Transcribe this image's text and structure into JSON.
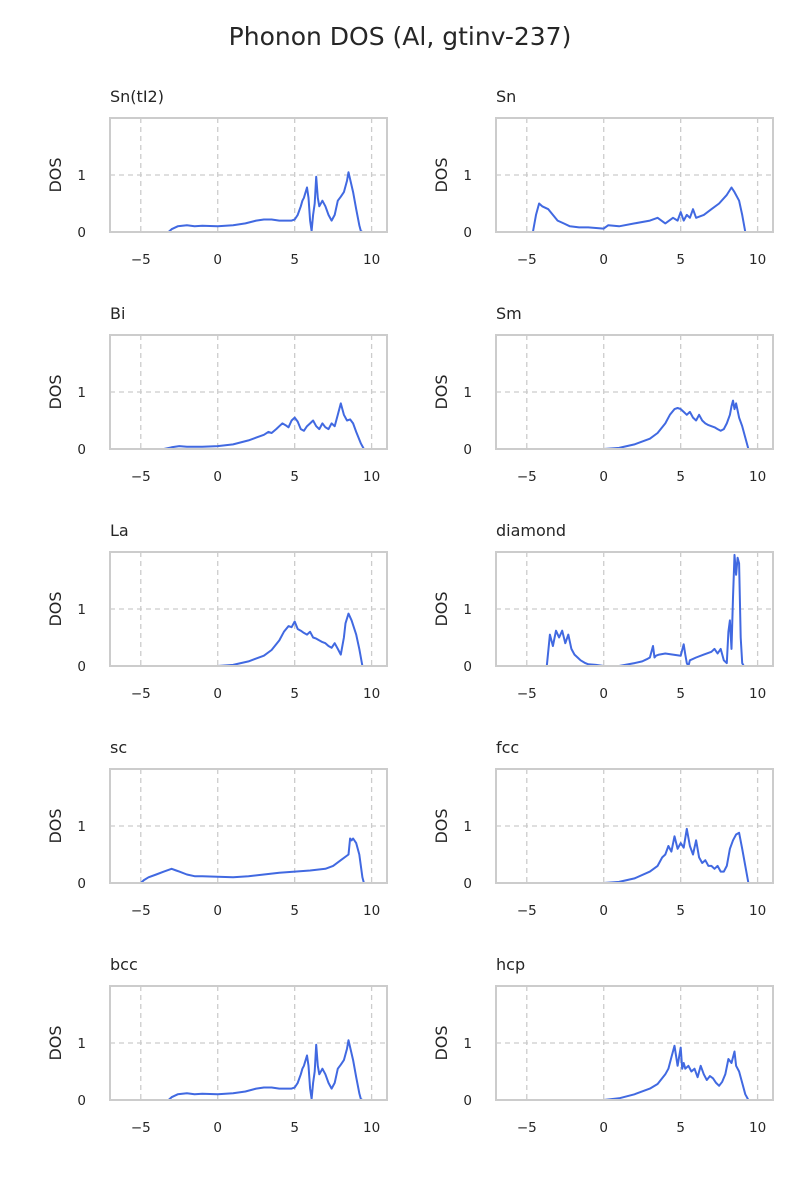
{
  "figure": {
    "title": "Phonon DOS (Al, gtinv-237)"
  },
  "style": {
    "line_color": "#4169e1"
  },
  "chart_data": [
    {
      "type": "line",
      "title": "Sn(tI2)",
      "xlabel": "",
      "ylabel": "DOS",
      "xlim": [
        -7,
        11
      ],
      "ylim": [
        0,
        2
      ],
      "xticks": [
        "−5",
        "0",
        "5",
        "10"
      ],
      "yticks": [
        "0",
        "1"
      ],
      "grid": true,
      "series": [
        {
          "x": [
            -4.5,
            -3.2,
            -3,
            -2.6,
            -2,
            -1.5,
            -1,
            0,
            1,
            1.8,
            2.5,
            3,
            3.5,
            4,
            4.5,
            4.8,
            5,
            5.2,
            5.4,
            5.5,
            5.6,
            5.8,
            5.9,
            6,
            6.1,
            6.2,
            6.3,
            6.4,
            6.5,
            6.6,
            6.8,
            7,
            7.2,
            7.4,
            7.6,
            7.8,
            8,
            8.2,
            8.4,
            8.5,
            8.8,
            9,
            9.2,
            9.3,
            9.4,
            10.5
          ],
          "y": [
            0,
            0,
            0.05,
            0.1,
            0.12,
            0.1,
            0.11,
            0.1,
            0.12,
            0.15,
            0.2,
            0.22,
            0.22,
            0.2,
            0.2,
            0.2,
            0.22,
            0.3,
            0.45,
            0.55,
            0.6,
            0.78,
            0.6,
            0.2,
            0.02,
            0.3,
            0.5,
            0.97,
            0.6,
            0.45,
            0.55,
            0.45,
            0.3,
            0.2,
            0.3,
            0.55,
            0.62,
            0.7,
            0.9,
            1.05,
            0.7,
            0.4,
            0.12,
            0.02,
            0,
            0
          ]
        }
      ]
    },
    {
      "type": "line",
      "title": "Sn",
      "xlabel": "",
      "ylabel": "DOS",
      "xlim": [
        -7,
        11
      ],
      "ylim": [
        0,
        2
      ],
      "xticks": [
        "−5",
        "0",
        "5",
        "10"
      ],
      "yticks": [
        "0",
        "1"
      ],
      "grid": true,
      "series": [
        {
          "x": [
            -5,
            -4.6,
            -4.4,
            -4.2,
            -4,
            -3.6,
            -3.3,
            -3,
            -2.6,
            -2.2,
            -1.6,
            -1,
            -0.5,
            0,
            0.3,
            1,
            2,
            3,
            3.5,
            4,
            4.5,
            4.8,
            5,
            5.2,
            5.4,
            5.6,
            5.8,
            6,
            6.5,
            7,
            7.5,
            8,
            8.3,
            8.5,
            8.8,
            9,
            9.2,
            10.5
          ],
          "y": [
            0,
            0,
            0.3,
            0.5,
            0.45,
            0.4,
            0.3,
            0.2,
            0.15,
            0.1,
            0.08,
            0.08,
            0.07,
            0.06,
            0.12,
            0.1,
            0.15,
            0.2,
            0.25,
            0.15,
            0.25,
            0.2,
            0.35,
            0.2,
            0.3,
            0.25,
            0.4,
            0.25,
            0.3,
            0.4,
            0.5,
            0.65,
            0.78,
            0.7,
            0.55,
            0.3,
            0,
            0
          ]
        }
      ]
    },
    {
      "type": "line",
      "title": "Bi",
      "xlabel": "",
      "ylabel": "DOS",
      "xlim": [
        -7,
        11
      ],
      "ylim": [
        0,
        2
      ],
      "xticks": [
        "−5",
        "0",
        "5",
        "10"
      ],
      "yticks": [
        "0",
        "1"
      ],
      "grid": true,
      "series": [
        {
          "x": [
            -4.5,
            -3.5,
            -3,
            -2.5,
            -2,
            -1,
            0,
            1,
            2,
            2.5,
            3,
            3.3,
            3.5,
            3.8,
            4,
            4.2,
            4.4,
            4.6,
            4.8,
            5,
            5.2,
            5.4,
            5.6,
            5.8,
            6,
            6.2,
            6.4,
            6.6,
            6.8,
            7,
            7.2,
            7.4,
            7.6,
            7.8,
            8,
            8.2,
            8.4,
            8.6,
            8.8,
            9,
            9.3,
            9.5,
            10.5
          ],
          "y": [
            0,
            0,
            0.03,
            0.05,
            0.04,
            0.04,
            0.05,
            0.08,
            0.15,
            0.2,
            0.25,
            0.3,
            0.28,
            0.35,
            0.4,
            0.45,
            0.42,
            0.38,
            0.5,
            0.55,
            0.48,
            0.35,
            0.32,
            0.4,
            0.45,
            0.5,
            0.4,
            0.35,
            0.45,
            0.38,
            0.35,
            0.45,
            0.4,
            0.6,
            0.8,
            0.6,
            0.5,
            0.52,
            0.45,
            0.3,
            0.1,
            0,
            0
          ]
        }
      ]
    },
    {
      "type": "line",
      "title": "Sm",
      "xlabel": "",
      "ylabel": "DOS",
      "xlim": [
        -7,
        11
      ],
      "ylim": [
        0,
        2
      ],
      "xticks": [
        "−5",
        "0",
        "5",
        "10"
      ],
      "yticks": [
        "0",
        "1"
      ],
      "grid": true,
      "series": [
        {
          "x": [
            -0.5,
            0,
            1,
            2,
            3,
            3.5,
            4,
            4.3,
            4.6,
            4.8,
            5,
            5.2,
            5.4,
            5.6,
            5.8,
            6,
            6.2,
            6.4,
            6.6,
            6.8,
            7,
            7.2,
            7.4,
            7.6,
            7.8,
            8,
            8.2,
            8.3,
            8.4,
            8.5,
            8.6,
            8.8,
            9,
            9.2,
            9.4,
            10.5
          ],
          "y": [
            0,
            0,
            0.02,
            0.08,
            0.18,
            0.28,
            0.45,
            0.6,
            0.7,
            0.72,
            0.7,
            0.65,
            0.6,
            0.65,
            0.55,
            0.5,
            0.6,
            0.5,
            0.45,
            0.42,
            0.4,
            0.38,
            0.35,
            0.32,
            0.35,
            0.45,
            0.6,
            0.75,
            0.85,
            0.7,
            0.8,
            0.55,
            0.4,
            0.2,
            0,
            0
          ]
        }
      ]
    },
    {
      "type": "line",
      "title": "La",
      "xlabel": "",
      "ylabel": "DOS",
      "xlim": [
        -7,
        11
      ],
      "ylim": [
        0,
        2
      ],
      "xticks": [
        "−5",
        "0",
        "5",
        "10"
      ],
      "yticks": [
        "0",
        "1"
      ],
      "grid": true,
      "series": [
        {
          "x": [
            -0.5,
            0,
            1,
            2,
            3,
            3.5,
            4,
            4.3,
            4.6,
            4.8,
            5,
            5.2,
            5.4,
            5.6,
            5.8,
            6,
            6.2,
            6.4,
            6.6,
            6.8,
            7,
            7.2,
            7.4,
            7.6,
            7.8,
            8,
            8.2,
            8.3,
            8.5,
            8.7,
            9,
            9.2,
            9.4,
            10.5
          ],
          "y": [
            0,
            0,
            0.02,
            0.08,
            0.18,
            0.28,
            0.45,
            0.6,
            0.7,
            0.68,
            0.78,
            0.65,
            0.62,
            0.58,
            0.55,
            0.6,
            0.5,
            0.48,
            0.45,
            0.42,
            0.4,
            0.35,
            0.32,
            0.4,
            0.3,
            0.2,
            0.5,
            0.75,
            0.92,
            0.8,
            0.55,
            0.3,
            0,
            0
          ]
        }
      ]
    },
    {
      "type": "line",
      "title": "diamond",
      "xlabel": "",
      "ylabel": "DOS",
      "xlim": [
        -7,
        11
      ],
      "ylim": [
        0,
        2
      ],
      "xticks": [
        "−5",
        "0",
        "5",
        "10"
      ],
      "yticks": [
        "0",
        "1"
      ],
      "grid": true,
      "series": [
        {
          "x": [
            -5,
            -3.7,
            -3.5,
            -3.3,
            -3.1,
            -2.9,
            -2.7,
            -2.5,
            -2.3,
            -2.1,
            -1.9,
            -1.7,
            -1.5,
            -1.2,
            -1,
            -0.5,
            0,
            1,
            2,
            2.5,
            2.8,
            3,
            3.2,
            3.3,
            3.4,
            3.6,
            4,
            4.5,
            5,
            5.2,
            5.3,
            5.4,
            5.5,
            5.6,
            6,
            6.5,
            7,
            7.2,
            7.4,
            7.6,
            7.8,
            8,
            8.1,
            8.2,
            8.3,
            8.4,
            8.5,
            8.6,
            8.7,
            8.8,
            8.9,
            9,
            9.1,
            10.5
          ],
          "y": [
            0,
            0,
            0.55,
            0.35,
            0.62,
            0.5,
            0.62,
            0.4,
            0.55,
            0.3,
            0.2,
            0.15,
            0.1,
            0.05,
            0.03,
            0.02,
            0,
            0,
            0.05,
            0.08,
            0.12,
            0.15,
            0.35,
            0.15,
            0.18,
            0.2,
            0.22,
            0.2,
            0.18,
            0.38,
            0.2,
            0.05,
            0,
            0.1,
            0.15,
            0.2,
            0.25,
            0.3,
            0.22,
            0.3,
            0.1,
            0.05,
            0.6,
            0.8,
            0.3,
            1.2,
            1.95,
            1.6,
            1.9,
            1.8,
            0.5,
            0.05,
            0,
            0
          ]
        }
      ]
    },
    {
      "type": "line",
      "title": "sc",
      "xlabel": "",
      "ylabel": "DOS",
      "xlim": [
        -7,
        11
      ],
      "ylim": [
        0,
        2
      ],
      "xticks": [
        "−5",
        "0",
        "5",
        "10"
      ],
      "yticks": [
        "0",
        "1"
      ],
      "grid": true,
      "series": [
        {
          "x": [
            -6,
            -5,
            -4.8,
            -4.5,
            -4,
            -3.5,
            -3,
            -2.7,
            -2.5,
            -2,
            -1.5,
            -1,
            0,
            1,
            2,
            3,
            4,
            5,
            6,
            7,
            7.5,
            8,
            8.5,
            8.6,
            8.7,
            8.8,
            9,
            9.2,
            9.4,
            9.5,
            10.5
          ],
          "y": [
            0,
            0,
            0.05,
            0.1,
            0.15,
            0.2,
            0.25,
            0.22,
            0.2,
            0.15,
            0.12,
            0.12,
            0.11,
            0.1,
            0.12,
            0.15,
            0.18,
            0.2,
            0.22,
            0.25,
            0.3,
            0.4,
            0.5,
            0.78,
            0.75,
            0.78,
            0.7,
            0.5,
            0.1,
            0,
            0
          ]
        }
      ]
    },
    {
      "type": "line",
      "title": "fcc",
      "xlabel": "",
      "ylabel": "DOS",
      "xlim": [
        -7,
        11
      ],
      "ylim": [
        0,
        2
      ],
      "xticks": [
        "−5",
        "0",
        "5",
        "10"
      ],
      "yticks": [
        "0",
        "1"
      ],
      "grid": true,
      "series": [
        {
          "x": [
            -0.5,
            0,
            1,
            2,
            3,
            3.5,
            3.8,
            4,
            4.2,
            4.4,
            4.6,
            4.8,
            5,
            5.2,
            5.4,
            5.6,
            5.8,
            6,
            6.2,
            6.4,
            6.6,
            6.8,
            7,
            7.2,
            7.4,
            7.6,
            7.8,
            8,
            8.2,
            8.4,
            8.6,
            8.8,
            9,
            9.2,
            9.4,
            10.5
          ],
          "y": [
            0,
            0,
            0.02,
            0.08,
            0.2,
            0.3,
            0.45,
            0.5,
            0.65,
            0.55,
            0.82,
            0.6,
            0.7,
            0.62,
            0.95,
            0.65,
            0.5,
            0.75,
            0.45,
            0.35,
            0.4,
            0.3,
            0.3,
            0.25,
            0.3,
            0.2,
            0.2,
            0.3,
            0.6,
            0.75,
            0.85,
            0.88,
            0.6,
            0.3,
            0,
            0
          ]
        }
      ]
    },
    {
      "type": "line",
      "title": "bcc",
      "xlabel": "",
      "ylabel": "DOS",
      "xlim": [
        -7,
        11
      ],
      "ylim": [
        0,
        2
      ],
      "xticks": [
        "−5",
        "0",
        "5",
        "10"
      ],
      "yticks": [
        "0",
        "1"
      ],
      "grid": true,
      "series": [
        {
          "x": [
            -4.5,
            -3.2,
            -3,
            -2.6,
            -2,
            -1.5,
            -1,
            0,
            1,
            1.8,
            2.5,
            3,
            3.5,
            4,
            4.5,
            4.8,
            5,
            5.2,
            5.4,
            5.5,
            5.6,
            5.8,
            5.9,
            6,
            6.1,
            6.2,
            6.3,
            6.4,
            6.5,
            6.6,
            6.8,
            7,
            7.2,
            7.4,
            7.6,
            7.8,
            8,
            8.2,
            8.4,
            8.5,
            8.8,
            9,
            9.2,
            9.3,
            9.4,
            10.5
          ],
          "y": [
            0,
            0,
            0.05,
            0.1,
            0.12,
            0.1,
            0.11,
            0.1,
            0.12,
            0.15,
            0.2,
            0.22,
            0.22,
            0.2,
            0.2,
            0.2,
            0.22,
            0.3,
            0.45,
            0.55,
            0.6,
            0.78,
            0.6,
            0.2,
            0.02,
            0.3,
            0.5,
            0.97,
            0.6,
            0.45,
            0.55,
            0.45,
            0.3,
            0.2,
            0.3,
            0.55,
            0.62,
            0.7,
            0.9,
            1.05,
            0.7,
            0.4,
            0.12,
            0.02,
            0,
            0
          ]
        }
      ]
    },
    {
      "type": "line",
      "title": "hcp",
      "xlabel": "",
      "ylabel": "DOS",
      "xlim": [
        -7,
        11
      ],
      "ylim": [
        0,
        2
      ],
      "xticks": [
        "−5",
        "0",
        "5",
        "10"
      ],
      "yticks": [
        "0",
        "1"
      ],
      "grid": true,
      "series": [
        {
          "x": [
            -0.5,
            0,
            1,
            2,
            3,
            3.5,
            4,
            4.2,
            4.4,
            4.6,
            4.8,
            5,
            5.1,
            5.2,
            5.3,
            5.5,
            5.7,
            5.9,
            6.1,
            6.3,
            6.5,
            6.7,
            6.9,
            7.1,
            7.3,
            7.5,
            7.7,
            7.9,
            8.1,
            8.3,
            8.5,
            8.6,
            8.8,
            9,
            9.2,
            9.4,
            10.5
          ],
          "y": [
            0,
            0,
            0.03,
            0.1,
            0.2,
            0.28,
            0.45,
            0.55,
            0.75,
            0.95,
            0.6,
            0.92,
            0.55,
            0.65,
            0.55,
            0.6,
            0.5,
            0.55,
            0.4,
            0.6,
            0.45,
            0.35,
            0.42,
            0.38,
            0.3,
            0.25,
            0.32,
            0.45,
            0.72,
            0.65,
            0.85,
            0.6,
            0.5,
            0.3,
            0.1,
            0,
            0
          ]
        }
      ]
    }
  ]
}
